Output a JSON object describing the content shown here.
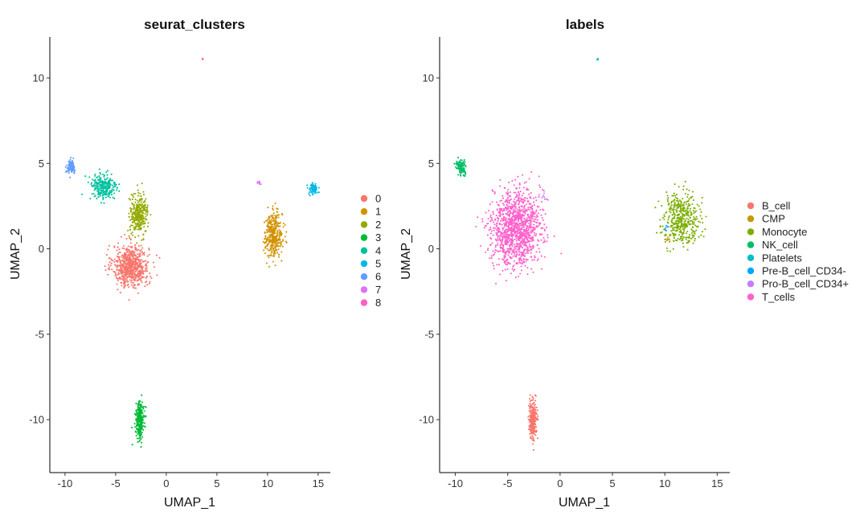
{
  "chart_data": [
    {
      "type": "scatter",
      "title": "seurat_clusters",
      "xlabel": "UMAP_1",
      "ylabel": "UMAP_2",
      "xlim": [
        -11.5,
        16.2
      ],
      "ylim": [
        -13.1,
        12.4
      ],
      "xticks": [
        -10,
        -5,
        0,
        5,
        10,
        15
      ],
      "yticks": [
        -10,
        -5,
        0,
        5,
        10
      ],
      "legend": {
        "placement": "right",
        "entries": [
          {
            "label": "0",
            "color": "#F8766D"
          },
          {
            "label": "1",
            "color": "#D39200"
          },
          {
            "label": "2",
            "color": "#93AA00"
          },
          {
            "label": "3",
            "color": "#00BA38"
          },
          {
            "label": "4",
            "color": "#00C19F"
          },
          {
            "label": "5",
            "color": "#00B9E3"
          },
          {
            "label": "6",
            "color": "#619CFF"
          },
          {
            "label": "7",
            "color": "#DB72FB"
          },
          {
            "label": "8",
            "color": "#FF61C3"
          }
        ]
      },
      "clusters": [
        {
          "label": "0",
          "color": "#F8766D",
          "center": [
            -3.5,
            -1.0
          ],
          "spread": [
            1.6,
            1.1
          ],
          "n": 700
        },
        {
          "label": "1",
          "color": "#D39200",
          "center": [
            10.6,
            0.8
          ],
          "spread": [
            0.8,
            1.2
          ],
          "n": 360
        },
        {
          "label": "2",
          "color": "#93AA00",
          "center": [
            -2.7,
            2.0
          ],
          "spread": [
            0.8,
            1.0
          ],
          "n": 320
        },
        {
          "label": "3",
          "color": "#00BA38",
          "center": [
            -2.6,
            -10.0
          ],
          "spread": [
            0.35,
            0.95
          ],
          "n": 280
        },
        {
          "label": "4",
          "color": "#00C19F",
          "center": [
            -6.2,
            3.6
          ],
          "spread": [
            1.2,
            0.75
          ],
          "n": 260
        },
        {
          "label": "5",
          "color": "#00B9E3",
          "center": [
            14.5,
            3.5
          ],
          "spread": [
            0.4,
            0.3
          ],
          "n": 80
        },
        {
          "label": "6",
          "color": "#619CFF",
          "center": [
            -9.4,
            4.8
          ],
          "spread": [
            0.4,
            0.35
          ],
          "n": 100
        },
        {
          "label": "7",
          "color": "#DB72FB",
          "center": [
            9.2,
            3.9
          ],
          "spread": [
            0.12,
            0.1
          ],
          "n": 8
        },
        {
          "label": "8",
          "color": "#FF61C3",
          "center": [
            3.6,
            11.1
          ],
          "spread": [
            0.05,
            0.05
          ],
          "n": 5
        }
      ]
    },
    {
      "type": "scatter",
      "title": "labels",
      "xlabel": "UMAP_1",
      "ylabel": "UMAP_2",
      "xlim": [
        -11.5,
        16.2
      ],
      "ylim": [
        -13.1,
        12.4
      ],
      "xticks": [
        -10,
        -5,
        0,
        5,
        10,
        15
      ],
      "yticks": [
        -10,
        -5,
        0,
        5,
        10
      ],
      "legend": {
        "placement": "right",
        "entries": [
          {
            "label": "B_cell",
            "color": "#F8766D"
          },
          {
            "label": "CMP",
            "color": "#C49A00"
          },
          {
            "label": "Monocyte",
            "color": "#7CAE00"
          },
          {
            "label": "NK_cell",
            "color": "#00BE67"
          },
          {
            "label": "Platelets",
            "color": "#00BFC4"
          },
          {
            "label": "Pre-B_cell_CD34-",
            "color": "#00A9FF"
          },
          {
            "label": "Pro-B_cell_CD34+",
            "color": "#C77CFF"
          },
          {
            "label": "T_cells",
            "color": "#FF61CC"
          }
        ]
      },
      "clusters": [
        {
          "label": "T_cells",
          "color": "#FF61CC",
          "center": [
            -4.2,
            1.2
          ],
          "spread": [
            2.1,
            2.0
          ],
          "n": 1250
        },
        {
          "label": "NK_cell",
          "color": "#00BE67",
          "center": [
            -9.4,
            4.8
          ],
          "spread": [
            0.45,
            0.4
          ],
          "n": 110
        },
        {
          "label": "Monocyte",
          "color": "#7CAE00",
          "center": [
            11.6,
            1.8
          ],
          "spread": [
            1.6,
            1.3
          ],
          "n": 440
        },
        {
          "label": "B_cell",
          "color": "#F8766D",
          "center": [
            -2.6,
            -10.0
          ],
          "spread": [
            0.35,
            0.95
          ],
          "n": 280
        },
        {
          "label": "Platelets",
          "color": "#00BFC4",
          "center": [
            3.6,
            11.1
          ],
          "spread": [
            0.05,
            0.05
          ],
          "n": 5
        },
        {
          "label": "Pre-B_cell_CD34-",
          "color": "#00A9FF",
          "center": [
            10.2,
            1.2
          ],
          "spread": [
            0.2,
            0.2
          ],
          "n": 6
        },
        {
          "label": "Pro-B_cell_CD34+",
          "color": "#C77CFF",
          "center": [
            -1.5,
            3.0
          ],
          "spread": [
            0.4,
            0.4
          ],
          "n": 6
        },
        {
          "label": "CMP",
          "color": "#C49A00",
          "center": [
            10.3,
            0.5
          ],
          "spread": [
            0.3,
            0.3
          ],
          "n": 8
        }
      ]
    }
  ]
}
